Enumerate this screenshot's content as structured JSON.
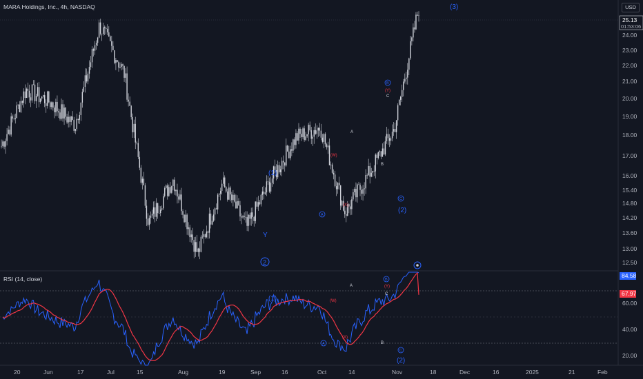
{
  "header": {
    "title": "MARA Holdings, Inc., 4h, NASDAQ",
    "currency": "USD"
  },
  "price_axis": {
    "ticks": [
      "24.00",
      "23.00",
      "22.00",
      "21.00",
      "20.00",
      "19.00",
      "18.00",
      "17.00",
      "16.00",
      "15.40",
      "14.80",
      "14.20",
      "13.60",
      "13.00",
      "12.50"
    ],
    "last_price": "25.13",
    "countdown": "01:53:06"
  },
  "rsi_panel": {
    "title": "RSI (14, close)",
    "ticks": [
      "60.00",
      "40.00",
      "20.00"
    ],
    "rsi_value": "84.58",
    "ma_value": "67.97"
  },
  "time_axis": [
    "20",
    "Jun",
    "17",
    "Jul",
    "15",
    "Aug",
    "19",
    "Sep",
    "16",
    "Oct",
    "14",
    "Nov",
    "18",
    "Dec",
    "16",
    "2025",
    "21",
    "Feb"
  ],
  "colors": {
    "background": "#131722",
    "wave": "#2962ff",
    "corrective": "#f23645",
    "rsi_line": "#2962ff",
    "rsi_ma": "#f23645",
    "candle": "#d1d4dc"
  },
  "chart_data": {
    "type": "line",
    "series": [
      {
        "name": "MARA 4h close",
        "x": [
          "May 21",
          "Jun 5",
          "Jun 17",
          "Jul 1",
          "Jul 15",
          "Jul 25",
          "Aug 5",
          "Aug 19",
          "Sep 6",
          "Sep 16",
          "Oct 1",
          "Oct 14",
          "Oct 22",
          "Oct 30",
          "Nov 4",
          "Nov 6",
          "Nov 8",
          "Nov 11"
        ],
        "values": [
          18.5,
          21.2,
          20.6,
          19.5,
          24.3,
          22.0,
          14.8,
          16.9,
          13.3,
          16.7,
          14.6,
          16.9,
          18.9,
          19.4,
          15.3,
          17.2,
          19.3,
          25.13
        ]
      }
    ],
    "ylim": [
      12.5,
      25.5
    ],
    "rsi": {
      "name": "RSI (14, close)",
      "last": 84.58,
      "ma_last": 67.97,
      "bands": [
        70,
        50,
        30
      ],
      "ylim": [
        15,
        85
      ]
    },
    "wave_labels": {
      "impulse": [
        "(3)",
        "2",
        "(1)",
        "(2)"
      ],
      "corrective": [
        "A",
        "B",
        "C",
        "(W)",
        "(X)",
        "(Y)",
        "Y"
      ],
      "circled": [
        "A",
        "B",
        "C"
      ],
      "rsi_labels": [
        "(1)",
        "(2)",
        "A",
        "B",
        "C",
        "(W)",
        "(X)",
        "(Y)"
      ]
    }
  }
}
